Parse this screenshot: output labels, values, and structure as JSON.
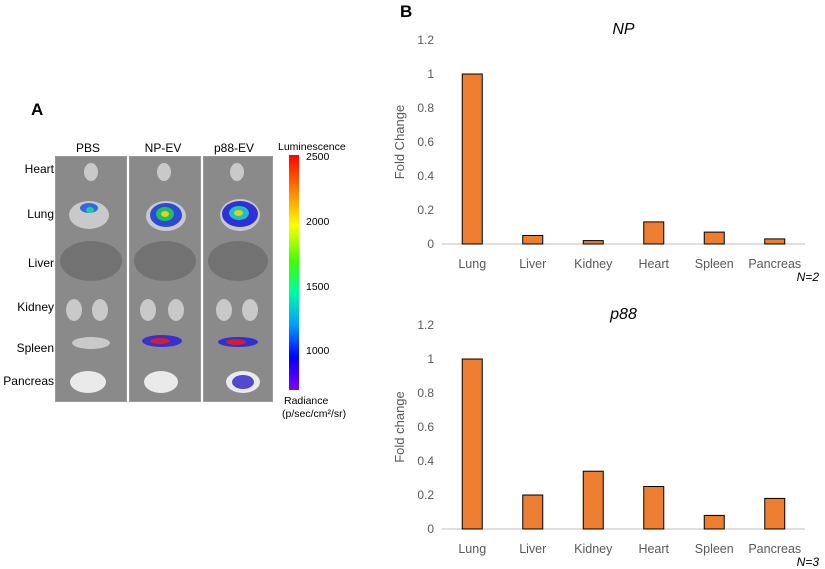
{
  "panel_a": {
    "letter": "A",
    "columns": [
      "PBS",
      "NP-EV",
      "p88-EV"
    ],
    "rows": [
      "Heart",
      "Lung",
      "Liver",
      "Kidney",
      "Spleen",
      "Pancreas"
    ],
    "scale": {
      "title": "Luminescence",
      "ticks": [
        "2500",
        "2000",
        "1500",
        "1000"
      ],
      "unit_line1": "Radiance",
      "unit_line2": "(p/sec/cm²/sr)"
    }
  },
  "panel_b": {
    "letter": "B"
  },
  "chart_data": [
    {
      "type": "bar",
      "title": "NP",
      "categories": [
        "Lung",
        "Liver",
        "Kidney",
        "Heart",
        "Spleen",
        "Pancreas"
      ],
      "values": [
        1.0,
        0.05,
        0.02,
        0.13,
        0.07,
        0.03
      ],
      "ylabel": "Fold Change",
      "xlabel": "",
      "ylim": [
        0,
        1.2
      ],
      "yticks": [
        "0",
        "0.2",
        "0.4",
        "0.6",
        "0.8",
        "1",
        "1.2"
      ],
      "note": "N=2",
      "bar_color": "#ED7D31"
    },
    {
      "type": "bar",
      "title": "p88",
      "categories": [
        "Lung",
        "Liver",
        "Kidney",
        "Heart",
        "Spleen",
        "Pancreas"
      ],
      "values": [
        1.0,
        0.2,
        0.34,
        0.25,
        0.08,
        0.18
      ],
      "ylabel": "Fold change",
      "xlabel": "",
      "ylim": [
        0,
        1.2
      ],
      "yticks": [
        "0",
        "0.2",
        "0.4",
        "0.6",
        "0.8",
        "1",
        "1.2"
      ],
      "note": "N=3",
      "bar_color": "#ED7D31"
    }
  ]
}
